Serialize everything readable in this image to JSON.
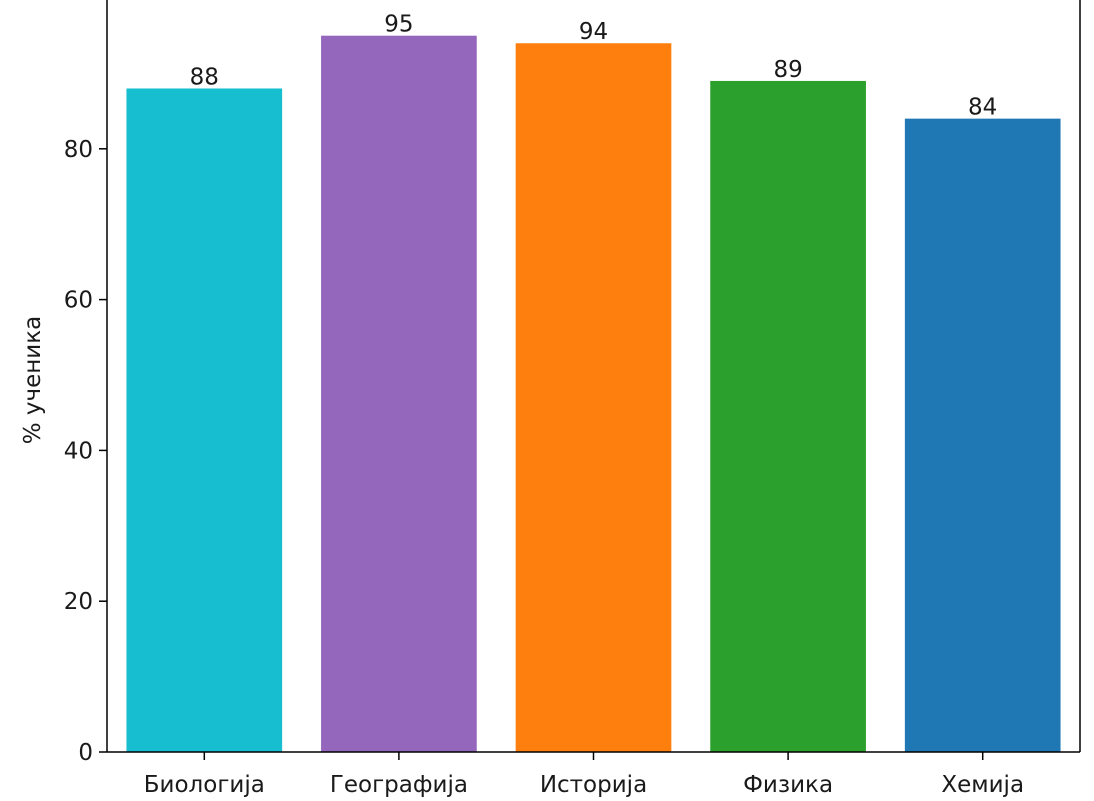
{
  "chart_data": {
    "type": "bar",
    "title": "",
    "xlabel": "",
    "ylabel": "% ученика",
    "categories": [
      "Биологија",
      "Географија",
      "Историја",
      "Физика",
      "Хемија"
    ],
    "values": [
      88,
      95,
      94,
      89,
      84
    ],
    "data_labels": [
      "88",
      "95",
      "94",
      "89",
      "84"
    ],
    "colors": [
      "#17becf",
      "#9467bd",
      "#ff7f0e",
      "#2ca02c",
      "#1f77b4"
    ],
    "ylim": [
      0,
      100
    ],
    "yticks": [
      0,
      20,
      40,
      60,
      80
    ],
    "ytick_labels": [
      "0",
      "20",
      "40",
      "60",
      "80"
    ],
    "grid": false,
    "legend": "none"
  }
}
